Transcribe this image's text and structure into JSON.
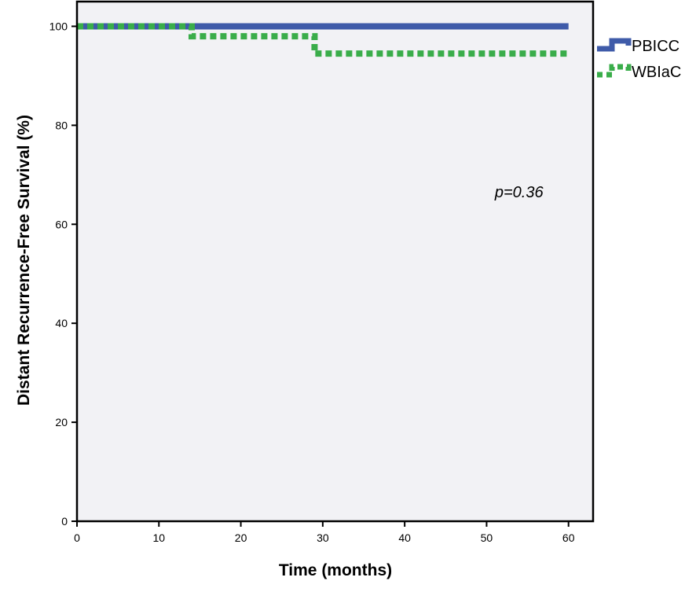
{
  "chart_data": {
    "type": "line",
    "subtype": "kaplan-meier-step",
    "title": "",
    "xlabel": "Time (months)",
    "ylabel": "Distant Recurrence-Free Survival (%)",
    "xlim": [
      0,
      63
    ],
    "ylim": [
      0,
      105
    ],
    "xticks": [
      0,
      10,
      20,
      30,
      40,
      50,
      60
    ],
    "yticks": [
      0,
      20,
      40,
      60,
      80,
      100
    ],
    "grid": false,
    "legend_position": "right",
    "background": "#f2f2f5",
    "series": [
      {
        "name": "PBICC",
        "style": "solid",
        "color": "#3f5ba9",
        "x": [
          0,
          60
        ],
        "y": [
          100,
          100
        ]
      },
      {
        "name": "WBIaC",
        "style": "dashed",
        "color": "#3aad4a",
        "x": [
          0,
          14,
          29,
          60
        ],
        "y": [
          100,
          98,
          94.5,
          94.5
        ]
      }
    ],
    "annotations": [
      {
        "text": "p=0.36",
        "x": 51,
        "y": 65
      }
    ]
  }
}
